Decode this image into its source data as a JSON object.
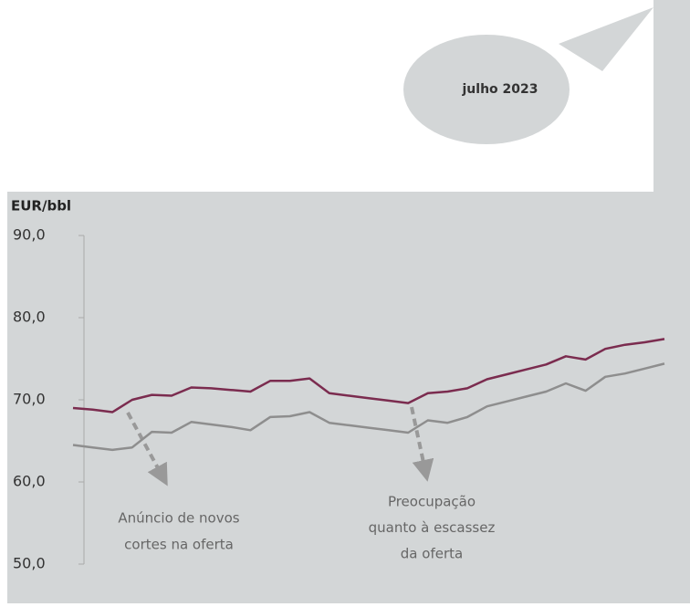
{
  "chart_data": {
    "type": "line",
    "bubble_label": "julho 2023",
    "y_axis_label": "EUR/bbl",
    "ylim": [
      50,
      90
    ],
    "yticks": [
      {
        "value": 50,
        "label": "50,0"
      },
      {
        "value": 60,
        "label": "60,0"
      },
      {
        "value": 70,
        "label": "70,0"
      },
      {
        "value": 80,
        "label": "80,0"
      },
      {
        "value": 90,
        "label": "90,0"
      }
    ],
    "categories": [
      null,
      null,
      null,
      null,
      null,
      null,
      null,
      null,
      null,
      null,
      null,
      null,
      null,
      null,
      null,
      null,
      null,
      null,
      null,
      null,
      null,
      null,
      null,
      null,
      null,
      null,
      null,
      null,
      null,
      null,
      null
    ],
    "series": [
      {
        "color": "#7b2c4f",
        "values": [
          69.0,
          68.8,
          68.5,
          70.0,
          70.6,
          70.5,
          71.5,
          71.4,
          71.2,
          71.0,
          72.3,
          72.3,
          72.6,
          70.8,
          70.5,
          70.2,
          69.9,
          69.6,
          70.8,
          71.0,
          71.4,
          72.5,
          73.1,
          73.7,
          74.3,
          75.3,
          74.9,
          76.2,
          76.7,
          77.0,
          77.4
        ]
      },
      {
        "color": "#8e8e8e",
        "values": [
          64.5,
          64.2,
          63.9,
          64.2,
          66.1,
          66.0,
          67.3,
          67.0,
          66.7,
          66.3,
          67.9,
          68.0,
          68.5,
          67.2,
          66.9,
          66.6,
          66.3,
          66.0,
          67.5,
          67.2,
          67.9,
          69.2,
          69.8,
          70.4,
          71.0,
          72.0,
          71.1,
          72.8,
          73.2,
          73.8,
          74.4
        ]
      }
    ],
    "annotations": [
      {
        "lines": [
          "Anúncio de novos",
          "cortes na oferta"
        ]
      },
      {
        "lines": [
          "Preocupação",
          "quanto à escassez",
          "da oferta"
        ]
      }
    ]
  }
}
